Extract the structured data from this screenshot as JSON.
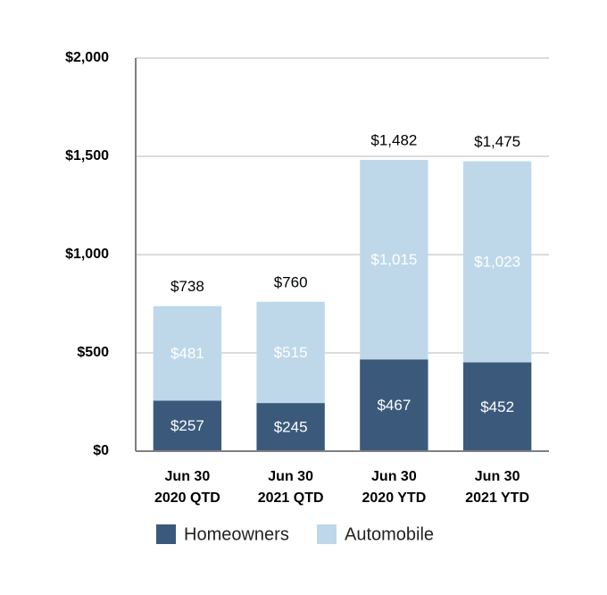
{
  "chart_data": {
    "type": "stacked-bar",
    "categories": [
      "Jun 30\n2020 QTD",
      "Jun 30\n2021 QTD",
      "Jun 30\n2020 YTD",
      "Jun 30\n2021 YTD"
    ],
    "series": [
      {
        "name": "Homeowners",
        "color": "#3b5a7b",
        "values": [
          257,
          245,
          467,
          452
        ],
        "value_labels": [
          "$257",
          "$245",
          "$467",
          "$452"
        ]
      },
      {
        "name": "Automobile",
        "color": "#bed8e9",
        "values": [
          481,
          515,
          1015,
          1023
        ],
        "value_labels": [
          "$481",
          "$515",
          "$1,015",
          "$1,023"
        ]
      }
    ],
    "totals": {
      "values": [
        738,
        760,
        1482,
        1475
      ],
      "value_labels": [
        "$738",
        "$760",
        "$1,482",
        "$1,475"
      ]
    },
    "ylim": [
      0,
      2000
    ],
    "yticks": [
      {
        "value": 0,
        "label": "$0"
      },
      {
        "value": 500,
        "label": "$500"
      },
      {
        "value": 1000,
        "label": "$1,000"
      },
      {
        "value": 1500,
        "label": "$1,500"
      },
      {
        "value": 2000,
        "label": "$2,000"
      }
    ],
    "grid": true
  }
}
